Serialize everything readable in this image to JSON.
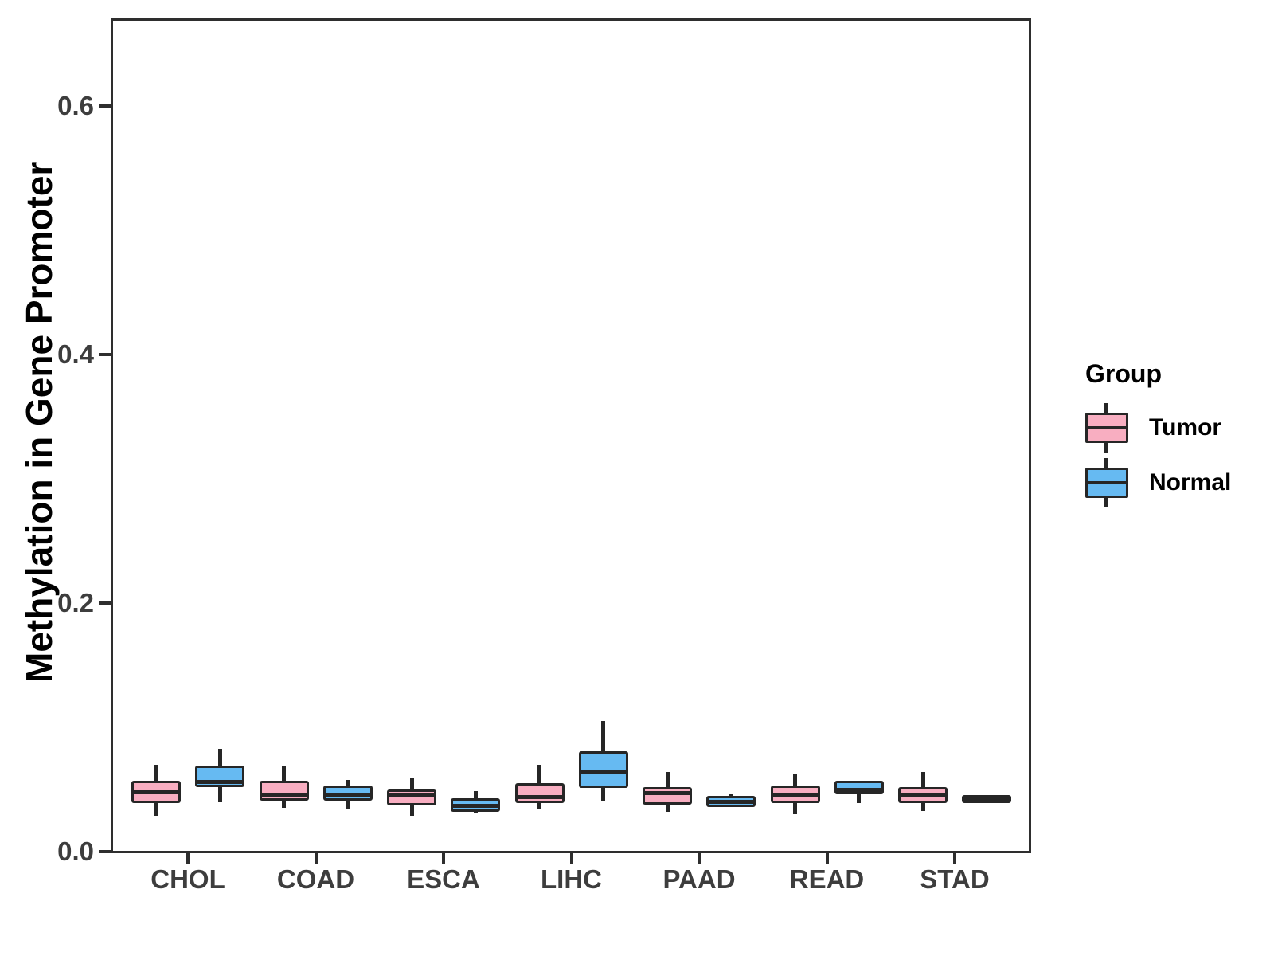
{
  "chart_data": {
    "type": "boxplot",
    "title": "",
    "xlabel": "",
    "ylabel": "Methylation in Gene Promoter",
    "categories": [
      "CHOL",
      "COAD",
      "ESCA",
      "LIHC",
      "PAAD",
      "READ",
      "STAD"
    ],
    "y_ticks": [
      0.0,
      0.2,
      0.4,
      0.6
    ],
    "ylim": [
      0,
      0.671
    ],
    "grid": "off",
    "legend": {
      "title": "Group",
      "position": "right",
      "entries": [
        {
          "label": "Tumor",
          "color": "#f8aec1"
        },
        {
          "label": "Normal",
          "color": "#66baf2"
        }
      ]
    },
    "stroke_color": "#262626",
    "series": [
      {
        "name": "Tumor",
        "color": "#f8aec1",
        "stat_format": [
          "min",
          "q1",
          "median",
          "q3",
          "max"
        ],
        "boxes": {
          "CHOL": [
            0.029,
            0.04,
            0.048,
            0.056,
            0.07
          ],
          "COAD": [
            0.035,
            0.042,
            0.046,
            0.056,
            0.069
          ],
          "ESCA": [
            0.029,
            0.038,
            0.046,
            0.049,
            0.059
          ],
          "LIHC": [
            0.034,
            0.04,
            0.044,
            0.054,
            0.07
          ],
          "PAAD": [
            0.032,
            0.039,
            0.047,
            0.051,
            0.064
          ],
          "READ": [
            0.03,
            0.04,
            0.045,
            0.052,
            0.063
          ],
          "STAD": [
            0.033,
            0.04,
            0.045,
            0.051,
            0.064
          ]
        }
      },
      {
        "name": "Normal",
        "color": "#66baf2",
        "stat_format": [
          "min",
          "q1",
          "median",
          "q3",
          "max"
        ],
        "boxes": {
          "CHOL": [
            0.04,
            0.053,
            0.056,
            0.068,
            0.083
          ],
          "COAD": [
            0.034,
            0.042,
            0.046,
            0.052,
            0.058
          ],
          "ESCA": [
            0.031,
            0.033,
            0.037,
            0.042,
            0.049
          ],
          "LIHC": [
            0.041,
            0.052,
            0.064,
            0.08,
            0.105
          ],
          "PAAD": [
            0.036,
            0.037,
            0.04,
            0.044,
            0.046
          ],
          "READ": [
            0.039,
            0.047,
            0.05,
            0.056,
            0.057
          ],
          "STAD": [
            0.039,
            0.04,
            0.042,
            0.0445,
            0.045
          ]
        }
      }
    ]
  }
}
